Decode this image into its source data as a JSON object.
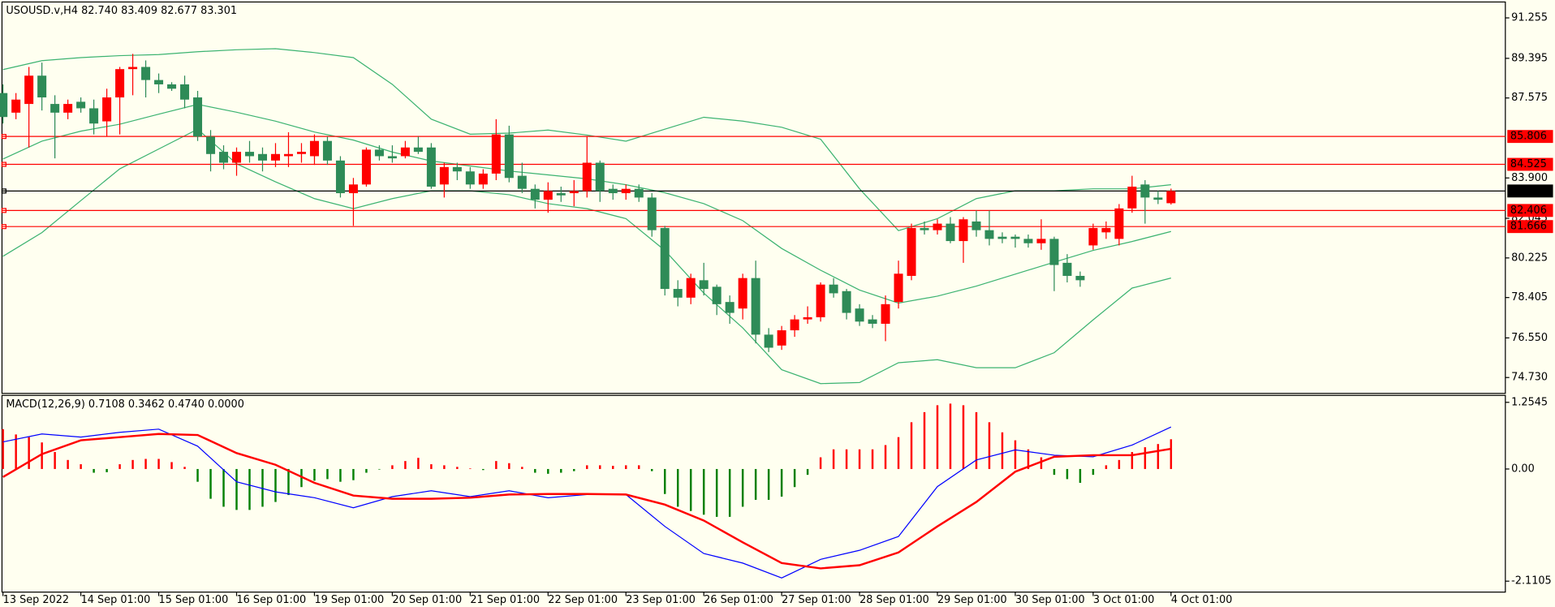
{
  "chart_data": [
    {
      "type": "candlestick",
      "title": "USOUSD.v,H4  82.740 83.409 82.677 83.301",
      "categories": [
        "13 Sep 2022",
        null,
        null,
        null,
        null,
        null,
        "14 Sep 01:00",
        null,
        null,
        null,
        null,
        null,
        "15 Sep 01:00",
        null,
        null,
        null,
        null,
        null,
        "16 Sep 01:00",
        null,
        null,
        null,
        null,
        null,
        "19 Sep 01:00",
        null,
        null,
        null,
        null,
        null,
        "20 Sep 01:00",
        null,
        null,
        null,
        null,
        null,
        "21 Sep 01:00",
        null,
        null,
        null,
        null,
        null,
        "22 Sep 01:00",
        null,
        null,
        null,
        null,
        null,
        "23 Sep 01:00",
        null,
        null,
        null,
        null,
        null,
        "26 Sep 01:00",
        null,
        null,
        null,
        null,
        null,
        "27 Sep 01:00",
        null,
        null,
        null,
        null,
        null,
        "28 Sep 01:00",
        null,
        null,
        null,
        null,
        null,
        "29 Sep 01:00",
        null,
        null,
        null,
        null,
        null,
        "30 Sep 01:00",
        null,
        null,
        null,
        null,
        null,
        "3 Oct 01:00",
        null,
        null,
        null,
        null,
        null,
        "4 Oct 01:00"
      ],
      "open": [
        87.8,
        86.9,
        87.3,
        88.6,
        87.3,
        86.9,
        87.4,
        87.1,
        86.5,
        87.6,
        88.9,
        89.0,
        88.4,
        88.2,
        88.2,
        87.6,
        85.8,
        85.1,
        84.6,
        85.1,
        85.0,
        84.7,
        84.9,
        85.0,
        84.9,
        85.6,
        84.7,
        83.2,
        83.6,
        85.2,
        84.9,
        84.9,
        85.3,
        85.3,
        83.6,
        84.4,
        84.2,
        83.6,
        84.1,
        85.9,
        84.0,
        83.4,
        82.9,
        83.2,
        83.2,
        83.3,
        84.6,
        83.4,
        83.2,
        83.4,
        83.0,
        81.6,
        78.8,
        78.4,
        79.2,
        78.9,
        78.2,
        77.9,
        79.3,
        76.7,
        76.2,
        76.9,
        77.4,
        77.5,
        79.0,
        78.7,
        77.9,
        77.4,
        77.2,
        78.2,
        79.4,
        81.6,
        81.5,
        81.8,
        81.0,
        81.9,
        81.5,
        81.2,
        81.2,
        81.1,
        80.9,
        81.1,
        80.0,
        79.4,
        80.8,
        81.4,
        81.1,
        82.5,
        83.6,
        83.0,
        82.74
      ],
      "high": [
        88.2,
        87.8,
        89.0,
        89.2,
        87.7,
        87.5,
        87.6,
        87.5,
        88.0,
        89.0,
        89.6,
        89.3,
        88.7,
        88.3,
        88.6,
        87.9,
        86.1,
        85.4,
        85.3,
        85.6,
        85.3,
        85.5,
        86.0,
        85.5,
        85.9,
        85.8,
        84.9,
        83.9,
        85.3,
        85.4,
        85.4,
        85.6,
        85.8,
        85.5,
        84.6,
        84.6,
        84.4,
        84.3,
        86.6,
        86.3,
        84.6,
        83.6,
        83.7,
        83.5,
        83.8,
        85.8,
        84.7,
        83.6,
        83.6,
        83.6,
        83.2,
        81.7,
        79.2,
        79.5,
        80.0,
        79.0,
        78.5,
        79.5,
        80.1,
        77.0,
        77.1,
        77.6,
        78.0,
        79.1,
        79.3,
        78.8,
        78.1,
        77.6,
        78.5,
        80.1,
        81.8,
        81.9,
        82.0,
        82.1,
        82.1,
        82.4,
        82.4,
        81.4,
        81.3,
        81.3,
        82.0,
        81.2,
        80.4,
        79.6,
        81.8,
        81.9,
        82.7,
        84.0,
        83.8,
        83.3,
        83.409
      ],
      "low": [
        86.4,
        86.6,
        85.3,
        87.0,
        84.8,
        86.6,
        86.9,
        85.9,
        85.8,
        85.9,
        87.7,
        87.6,
        87.8,
        87.9,
        87.1,
        85.6,
        84.2,
        84.3,
        84.0,
        84.6,
        84.2,
        84.4,
        84.4,
        84.6,
        84.5,
        84.5,
        83.0,
        81.7,
        83.5,
        84.7,
        84.6,
        84.8,
        85.0,
        83.4,
        83.0,
        83.8,
        83.4,
        83.4,
        83.8,
        83.7,
        83.2,
        82.5,
        82.3,
        82.8,
        82.6,
        83.0,
        82.8,
        82.9,
        82.9,
        82.8,
        81.2,
        78.5,
        78.0,
        78.1,
        78.5,
        77.6,
        77.2,
        77.4,
        76.3,
        75.9,
        76.0,
        76.6,
        77.2,
        77.3,
        78.4,
        77.4,
        77.1,
        77.0,
        76.4,
        77.9,
        79.2,
        81.3,
        81.3,
        80.9,
        80.0,
        81.2,
        80.8,
        80.9,
        80.7,
        80.7,
        80.6,
        78.7,
        79.1,
        78.9,
        80.6,
        81.1,
        80.8,
        82.3,
        81.8,
        82.7,
        82.677
      ],
      "close": [
        86.7,
        87.5,
        88.6,
        87.6,
        86.9,
        87.3,
        87.1,
        86.4,
        87.6,
        88.9,
        89.0,
        88.4,
        88.2,
        88.0,
        87.5,
        85.8,
        85.0,
        84.6,
        85.1,
        84.9,
        84.7,
        85.0,
        85.0,
        85.1,
        85.6,
        84.7,
        83.2,
        83.6,
        85.2,
        84.9,
        84.8,
        85.3,
        85.1,
        83.5,
        84.4,
        84.2,
        83.6,
        84.1,
        85.9,
        83.9,
        83.4,
        82.9,
        83.3,
        83.1,
        83.3,
        84.6,
        83.3,
        83.2,
        83.4,
        83.0,
        81.5,
        78.8,
        78.4,
        79.3,
        78.8,
        78.1,
        77.7,
        79.3,
        76.7,
        76.1,
        76.9,
        77.4,
        77.5,
        79.0,
        78.6,
        77.7,
        77.3,
        77.2,
        78.1,
        79.5,
        81.6,
        81.5,
        81.8,
        81.0,
        82.0,
        81.5,
        81.1,
        81.1,
        81.1,
        80.9,
        81.1,
        79.9,
        79.4,
        79.2,
        81.6,
        81.6,
        82.5,
        83.5,
        83.0,
        82.9,
        83.301
      ],
      "up_color": "#ff0000",
      "down_color": "#2e8b57",
      "bands": [
        {
          "color": "#3cb371",
          "x": [
            0,
            3,
            6,
            9,
            12,
            15,
            18,
            21,
            24,
            27,
            30,
            33,
            36,
            39,
            42,
            45,
            48,
            51,
            54,
            57,
            60,
            63,
            66,
            69,
            72,
            75,
            78,
            81,
            84,
            87,
            90
          ],
          "values": [
            88.88,
            89.29,
            89.43,
            89.52,
            89.57,
            89.7,
            89.79,
            89.84,
            89.66,
            89.43,
            88.2,
            86.6,
            85.91,
            85.96,
            86.1,
            85.87,
            85.59,
            86.14,
            86.69,
            86.51,
            86.23,
            85.68,
            83.4,
            81.48,
            82.03,
            82.95,
            83.31,
            83.31,
            83.4,
            83.4,
            83.59
          ]
        },
        {
          "color": "#3cb371",
          "x": [
            0,
            3,
            6,
            9,
            12,
            15,
            18,
            21,
            24,
            27,
            30,
            33,
            36,
            39,
            42,
            45,
            48,
            51,
            54,
            57,
            60,
            63,
            66,
            69,
            72,
            75,
            78,
            81,
            84,
            87,
            90
          ],
          "values": [
            84.77,
            85.59,
            86.05,
            86.37,
            86.83,
            87.28,
            86.92,
            86.51,
            86.01,
            85.64,
            85.09,
            84.68,
            84.45,
            84.22,
            84.04,
            83.86,
            83.59,
            83.22,
            82.72,
            81.94,
            80.66,
            79.66,
            78.75,
            78.15,
            78.47,
            78.93,
            79.48,
            80.03,
            80.57,
            80.98,
            81.44
          ]
        },
        {
          "color": "#3cb371",
          "x": [
            0,
            3,
            6,
            9,
            12,
            15,
            18,
            21,
            24,
            27,
            30,
            33,
            36,
            39,
            42,
            45,
            48,
            51,
            54,
            57,
            60,
            63,
            66,
            69,
            72,
            75,
            78,
            81,
            84,
            87,
            90
          ],
          "values": [
            80.3,
            81.39,
            82.86,
            84.32,
            85.23,
            86.14,
            84.55,
            83.72,
            82.95,
            82.49,
            82.95,
            83.31,
            83.31,
            83.13,
            82.72,
            82.49,
            82.03,
            80.57,
            78.61,
            77.01,
            75.09,
            74.45,
            74.5,
            75.41,
            75.55,
            75.18,
            75.18,
            75.87,
            77.38,
            78.84,
            79.3
          ]
        }
      ],
      "levels": [
        {
          "value": 85.806,
          "color": "#ff0000"
        },
        {
          "value": 84.525,
          "color": "#ff0000"
        },
        {
          "value": 82.406,
          "color": "#ff0000"
        },
        {
          "value": 81.666,
          "color": "#ff0000"
        },
        {
          "value": 83.301,
          "color": "#000000"
        }
      ],
      "ylim": [
        74.0,
        91.985
      ],
      "yticks": [
        91.255,
        89.395,
        87.575,
        {
          "value": 83.9,
          "label": "83.900"
        },
        82.045,
        80.225,
        78.405,
        {
          "value": 76.55,
          "label": "76.550"
        },
        {
          "value": 74.73,
          "label": "74.730"
        }
      ]
    },
    {
      "type": "macd",
      "title": "MACD(12,26,9) 0.7108 0.3462 0.4740 0.0000",
      "values": [
        0.75,
        0.65,
        0.6,
        0.5,
        0.32,
        0.17,
        0.09,
        -0.07,
        -0.06,
        0.09,
        0.17,
        0.19,
        0.19,
        0.13,
        0.04,
        -0.24,
        -0.56,
        -0.71,
        -0.77,
        -0.77,
        -0.71,
        -0.62,
        -0.49,
        -0.34,
        -0.22,
        -0.19,
        -0.24,
        -0.21,
        -0.07,
        -0.01,
        0.07,
        0.15,
        0.21,
        0.09,
        0.07,
        0.04,
        0.01,
        -0.02,
        0.15,
        0.11,
        0.04,
        -0.07,
        -0.09,
        -0.07,
        -0.04,
        0.07,
        0.07,
        0.06,
        0.07,
        0.07,
        -0.04,
        -0.47,
        -0.71,
        -0.79,
        -0.86,
        -0.9,
        -0.9,
        -0.71,
        -0.58,
        -0.58,
        -0.52,
        -0.34,
        -0.11,
        0.22,
        0.37,
        0.37,
        0.37,
        0.37,
        0.45,
        0.6,
        0.88,
        1.07,
        1.2,
        1.23,
        1.2,
        1.07,
        0.88,
        0.69,
        0.54,
        0.37,
        0.22,
        -0.11,
        -0.19,
        -0.26,
        -0.11,
        0.07,
        0.17,
        0.32,
        0.41,
        0.47,
        0.56
      ],
      "positive_color": "#ff0000",
      "negative_color": "#008000",
      "lines": [
        {
          "color": "#0000ff",
          "width": 1,
          "x": [
            0,
            3,
            6,
            9,
            12,
            15,
            18,
            21,
            24,
            27,
            30,
            33,
            36,
            39,
            42,
            45,
            48,
            51,
            54,
            57,
            60,
            63,
            66,
            69,
            72,
            75,
            78,
            81,
            84,
            87,
            90
          ],
          "values": [
            0.51,
            0.66,
            0.6,
            0.69,
            0.75,
            0.43,
            -0.24,
            -0.43,
            -0.54,
            -0.73,
            -0.52,
            -0.41,
            -0.52,
            -0.41,
            -0.54,
            -0.48,
            -0.48,
            -1.08,
            -1.59,
            -1.77,
            -2.05,
            -1.7,
            -1.53,
            -1.27,
            -0.33,
            0.17,
            0.36,
            0.26,
            0.23,
            0.45,
            0.79
          ]
        },
        {
          "color": "#ff0000",
          "width": 2,
          "x": [
            0,
            3,
            6,
            9,
            12,
            15,
            18,
            21,
            24,
            27,
            30,
            33,
            36,
            39,
            42,
            45,
            48,
            51,
            54,
            57,
            60,
            63,
            66,
            69,
            72,
            75,
            78,
            81,
            84,
            87,
            90
          ],
          "values": [
            -0.15,
            0.28,
            0.54,
            0.6,
            0.66,
            0.64,
            0.3,
            0.08,
            -0.26,
            -0.5,
            -0.56,
            -0.56,
            -0.54,
            -0.48,
            -0.47,
            -0.47,
            -0.48,
            -0.67,
            -0.97,
            -1.38,
            -1.77,
            -1.87,
            -1.81,
            -1.57,
            -1.08,
            -0.62,
            -0.05,
            0.23,
            0.26,
            0.26,
            0.38
          ]
        }
      ],
      "ylim": [
        -2.316,
        1.385
      ],
      "yticks": [
        1.2545,
        {
          "value": 0,
          "label": "0.00"
        },
        -2.1105
      ]
    }
  ]
}
